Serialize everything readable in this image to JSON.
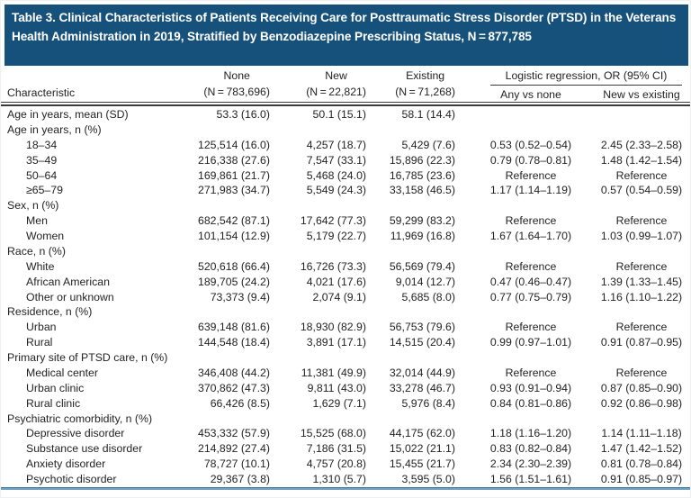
{
  "title": "Table 3. Clinical Characteristics of Patients Receiving Care for Posttraumatic Stress Disorder (PTSD) in the Veterans Health Administration in 2019, Stratified by Benzodiazepine Prescribing Status, N = 877,785",
  "colors": {
    "banner_blue": "#16517B",
    "bottom_rule_blue": "#6FA3BF",
    "rule_dark": "#3A3A3A",
    "text": "#232323"
  },
  "header": {
    "characteristic": "Characteristic",
    "cols": [
      {
        "label": "None",
        "n": "(N = 783,696)"
      },
      {
        "label": "New",
        "n": "(N = 22,821)"
      },
      {
        "label": "Existing",
        "n": "(N = 71,268)"
      }
    ],
    "logistic": {
      "label": "Logistic regression, OR (95% CI)",
      "sub": [
        "Any vs none",
        "New vs existing"
      ]
    }
  },
  "rows": [
    {
      "label": "Age in years, mean (SD)",
      "indent": 0,
      "cells": [
        "53.3 (16.0)",
        "50.1 (15.1)",
        "58.1 (14.4)",
        "",
        ""
      ]
    },
    {
      "label": "Age in years, n (%)",
      "indent": 0,
      "cells": [
        "",
        "",
        "",
        "",
        ""
      ]
    },
    {
      "label": "18–34",
      "indent": 1,
      "cells": [
        "125,514 (16.0)",
        "4,257 (18.7)",
        "5,429 (7.6)",
        "0.53 (0.52–0.54)",
        "2.45 (2.33–2.58)"
      ]
    },
    {
      "label": "35–49",
      "indent": 1,
      "cells": [
        "216,338 (27.6)",
        "7,547 (33.1)",
        "15,896 (22.3)",
        "0.79 (0.78–0.81)",
        "1.48 (1.42–1.54)"
      ]
    },
    {
      "label": "50–64",
      "indent": 1,
      "cells": [
        "169,861 (21.7)",
        "5,468 (24.0)",
        "16,785 (23.6)",
        "Reference",
        "Reference"
      ]
    },
    {
      "label": "≥65–79",
      "indent": 1,
      "cells": [
        "271,983 (34.7)",
        "5,549 (24.3)",
        "33,158 (46.5)",
        "1.17 (1.14–1.19)",
        "0.57 (0.54–0.59)"
      ]
    },
    {
      "label": "Sex, n (%)",
      "indent": 0,
      "cells": [
        "",
        "",
        "",
        "",
        ""
      ]
    },
    {
      "label": "Men",
      "indent": 1,
      "cells": [
        "682,542 (87.1)",
        "17,642 (77.3)",
        "59,299 (83.2)",
        "Reference",
        "Reference"
      ]
    },
    {
      "label": "Women",
      "indent": 1,
      "cells": [
        "101,154 (12.9)",
        "5,179 (22.7)",
        "11,969 (16.8)",
        "1.67 (1.64–1.70)",
        "1.03 (0.99–1.07)"
      ]
    },
    {
      "label": "Race, n (%)",
      "indent": 0,
      "cells": [
        "",
        "",
        "",
        "",
        ""
      ]
    },
    {
      "label": "White",
      "indent": 1,
      "cells": [
        "520,618 (66.4)",
        "16,726 (73.3)",
        "56,569 (79.4)",
        "Reference",
        "Reference"
      ]
    },
    {
      "label": "African American",
      "indent": 1,
      "cells": [
        "189,705 (24.2)",
        "4,021 (17.6)",
        "9,014 (12.7)",
        "0.47 (0.46–0.47)",
        "1.39 (1.33–1.45)"
      ]
    },
    {
      "label": "Other or unknown",
      "indent": 1,
      "cells": [
        "73,373 (9.4)",
        "2,074 (9.1)",
        "5,685 (8.0)",
        "0.77 (0.75–0.79)",
        "1.16 (1.10–1.22)"
      ]
    },
    {
      "label": "Residence, n (%)",
      "indent": 0,
      "cells": [
        "",
        "",
        "",
        "",
        ""
      ]
    },
    {
      "label": "Urban",
      "indent": 1,
      "cells": [
        "639,148 (81.6)",
        "18,930 (82.9)",
        "56,753 (79.6)",
        "Reference",
        "Reference"
      ]
    },
    {
      "label": "Rural",
      "indent": 1,
      "cells": [
        "144,548 (18.4)",
        "3,891 (17.1)",
        "14,515 (20.4)",
        "0.99 (0.97–1.01)",
        "0.91 (0.87–0.95)"
      ]
    },
    {
      "label": "Primary site of PTSD care, n (%)",
      "indent": 0,
      "cells": [
        "",
        "",
        "",
        "",
        ""
      ]
    },
    {
      "label": "Medical center",
      "indent": 1,
      "cells": [
        "346,408 (44.2)",
        "11,381 (49.9)",
        "32,014 (44.9)",
        "Reference",
        "Reference"
      ]
    },
    {
      "label": "Urban clinic",
      "indent": 1,
      "cells": [
        "370,862 (47.3)",
        "9,811 (43.0)",
        "33,278 (46.7)",
        "0.93 (0.91–0.94)",
        "0.87 (0.85–0.90)"
      ]
    },
    {
      "label": "Rural clinic",
      "indent": 1,
      "cells": [
        "66,426 (8.5)",
        "1,629 (7.1)",
        "5,976 (8.4)",
        "0.84 (0.81–0.86)",
        "0.92 (0.86–0.98)"
      ]
    },
    {
      "label": "Psychiatric comorbidity, n (%)",
      "indent": 0,
      "cells": [
        "",
        "",
        "",
        "",
        ""
      ]
    },
    {
      "label": "Depressive disorder",
      "indent": 1,
      "cells": [
        "453,332 (57.9)",
        "15,525 (68.0)",
        "44,175 (62.0)",
        "1.18 (1.16–1.20)",
        "1.14 (1.11–1.18)"
      ]
    },
    {
      "label": "Substance use disorder",
      "indent": 1,
      "cells": [
        "214,892 (27.4)",
        "7,186 (31.5)",
        "15,022 (21.1)",
        "0.83 (0.82–0.84)",
        "1.47 (1.42–1.52)"
      ]
    },
    {
      "label": "Anxiety disorder",
      "indent": 1,
      "cells": [
        "78,727 (10.1)",
        "4,757 (20.8)",
        "15,455 (21.7)",
        "2.34 (2.30–2.39)",
        "0.81 (0.78–0.84)"
      ]
    },
    {
      "label": "Psychotic disorder",
      "indent": 1,
      "cells": [
        "29,367 (3.8)",
        "1,310 (5.7)",
        "3,595 (5.0)",
        "1.56 (1.51–1.61)",
        "0.91 (0.85–0.97)"
      ]
    }
  ]
}
